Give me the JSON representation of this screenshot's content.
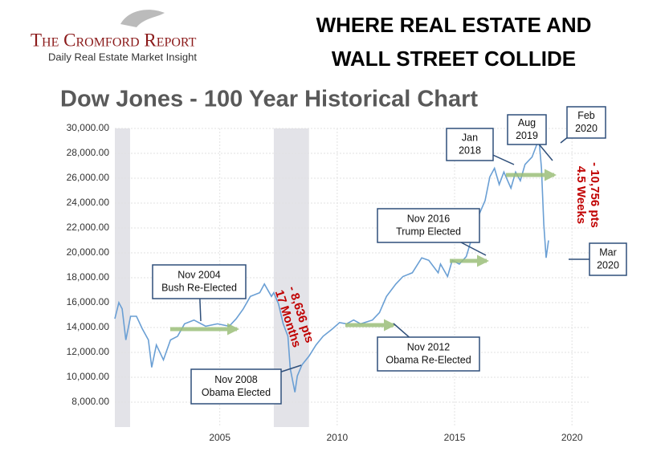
{
  "header": {
    "brand": "The Cromford Report",
    "tagline": "Daily Real Estate Market Insight",
    "headline": [
      "WHERE REAL ESTATE AND",
      "WALL STREET COLLIDE"
    ]
  },
  "chart_data": {
    "type": "line",
    "title": "Dow Jones - 100 Year Historical Chart",
    "color": "#6a9fd4",
    "grid": true,
    "xlim": [
      2000.53,
      2020.78
    ],
    "xticks": [
      2005,
      2010,
      2015,
      2020
    ],
    "ylim": [
      6000,
      30000
    ],
    "yticks": [
      {
        "value": 8000,
        "label": "8,000.00"
      },
      {
        "value": 10000,
        "label": "10,000.00"
      },
      {
        "value": 12000,
        "label": "12,000.00"
      },
      {
        "value": 14000,
        "label": "14,000.00"
      },
      {
        "value": 16000,
        "label": "16,000.00"
      },
      {
        "value": 18000,
        "label": "18,000.00"
      },
      {
        "value": 20000,
        "label": "20,000.00"
      },
      {
        "value": 22000,
        "label": "22,000.00"
      },
      {
        "value": 24000,
        "label": "24,000.00"
      },
      {
        "value": 26000,
        "label": "26,000.00"
      },
      {
        "value": 28000,
        "label": "28,000.00"
      },
      {
        "value": 30000,
        "label": "30,000.00"
      }
    ],
    "shaded_ranges": [
      [
        2000.53,
        2001.18
      ],
      [
        2007.3,
        2008.8
      ]
    ],
    "x": [
      2000.53,
      2000.7,
      2000.84,
      2001.0,
      2001.2,
      2001.45,
      2001.7,
      2001.96,
      2002.1,
      2002.3,
      2002.6,
      2002.9,
      2003.2,
      2003.5,
      2003.9,
      2004.4,
      2004.9,
      2005.4,
      2005.7,
      2006.0,
      2006.3,
      2006.7,
      2006.9,
      2007.2,
      2007.3,
      2007.5,
      2007.7,
      2007.9,
      2008.0,
      2008.2,
      2008.3,
      2008.5,
      2008.8,
      2009.1,
      2009.4,
      2009.8,
      2010.1,
      2010.4,
      2010.7,
      2011.0,
      2011.5,
      2011.8,
      2012.1,
      2012.5,
      2012.8,
      2013.2,
      2013.6,
      2013.9,
      2014.3,
      2014.4,
      2014.7,
      2014.9,
      2015.2,
      2015.5,
      2015.8,
      2016.0,
      2016.3,
      2016.5,
      2016.7,
      2016.9,
      2017.1,
      2017.4,
      2017.6,
      2017.8,
      2018.0,
      2018.3,
      2018.5,
      2018.6,
      2018.7,
      2018.8,
      2018.9,
      2019.0
    ],
    "values": [
      14700,
      16000,
      15500,
      13000,
      14900,
      14900,
      13900,
      13000,
      10800,
      12600,
      11400,
      13000,
      13300,
      14300,
      14600,
      14100,
      14300,
      14100,
      14700,
      15500,
      16500,
      16800,
      17500,
      16500,
      16800,
      15900,
      14300,
      13300,
      10700,
      8800,
      10100,
      11000,
      11700,
      12600,
      13300,
      13900,
      14400,
      14300,
      14600,
      14300,
      14600,
      15200,
      16500,
      17500,
      18100,
      18400,
      19600,
      19400,
      18400,
      19100,
      18100,
      19400,
      19100,
      19700,
      21600,
      22900,
      24200,
      26100,
      26800,
      25500,
      26500,
      25200,
      26500,
      25800,
      27100,
      27700,
      28700,
      29000,
      26800,
      22300,
      19600,
      21000
    ],
    "annotations": [
      {
        "lines": [
          "Nov 2004",
          "Bush Re-Elected"
        ]
      },
      {
        "lines": [
          "Nov 2008",
          "Obama Elected"
        ]
      },
      {
        "lines": [
          "Nov 2012",
          "Obama Re-Elected"
        ]
      },
      {
        "lines": [
          "Nov 2016",
          "Trump Elected"
        ]
      },
      {
        "lines": [
          "Jan",
          "2018"
        ]
      },
      {
        "lines": [
          "Aug",
          "2019"
        ]
      },
      {
        "lines": [
          "Feb",
          "2020"
        ]
      },
      {
        "lines": [
          "Mar",
          "2020"
        ]
      }
    ],
    "drops": [
      {
        "lines": [
          "- 8,636 pts",
          "17 Months"
        ]
      },
      {
        "lines": [
          "- 10,756 pts",
          "4.5 Weeks"
        ]
      }
    ]
  }
}
